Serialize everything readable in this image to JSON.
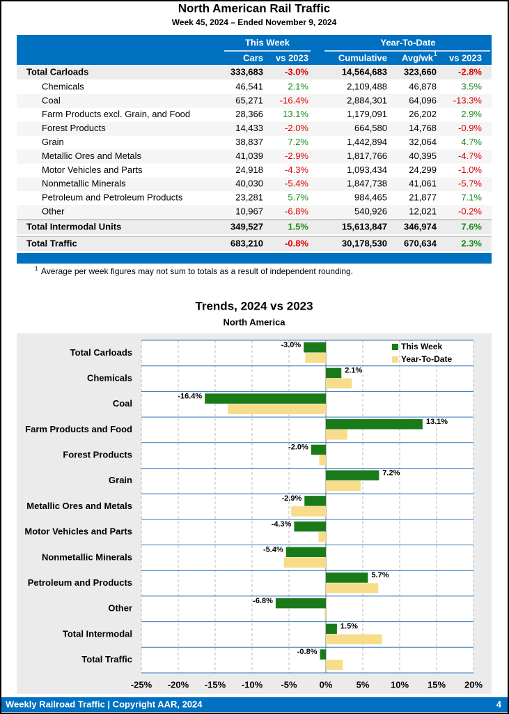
{
  "header": {
    "title": "North American Rail Traffic",
    "subtitle": "Week 45, 2024 – Ended November 9, 2024"
  },
  "table": {
    "group_headers": [
      "This Week",
      "Year-To-Date"
    ],
    "columns": [
      "Cars",
      "vs 2023",
      "Cumulative",
      "Avg/wk",
      "vs 2023"
    ],
    "footnote_ref": "1",
    "rows": [
      [
        "Total Carloads",
        "333,683",
        "-3.0%",
        "14,564,683",
        "323,660",
        "-2.8%"
      ],
      [
        "Chemicals",
        "46,541",
        "2.1%",
        "2,109,488",
        "46,878",
        "3.5%"
      ],
      [
        "Coal",
        "65,271",
        "-16.4%",
        "2,884,301",
        "64,096",
        "-13.3%"
      ],
      [
        "Farm Products excl. Grain, and Food",
        "28,366",
        "13.1%",
        "1,179,091",
        "26,202",
        "2.9%"
      ],
      [
        "Forest Products",
        "14,433",
        "-2.0%",
        "664,580",
        "14,768",
        "-0.9%"
      ],
      [
        "Grain",
        "38,837",
        "7.2%",
        "1,442,894",
        "32,064",
        "4.7%"
      ],
      [
        "Metallic Ores and Metals",
        "41,039",
        "-2.9%",
        "1,817,766",
        "40,395",
        "-4.7%"
      ],
      [
        "Motor Vehicles and Parts",
        "24,918",
        "-4.3%",
        "1,093,434",
        "24,299",
        "-1.0%"
      ],
      [
        "Nonmetallic Minerals",
        "40,030",
        "-5.4%",
        "1,847,738",
        "41,061",
        "-5.7%"
      ],
      [
        "Petroleum and Petroleum Products",
        "23,281",
        "5.7%",
        "984,465",
        "21,877",
        "7.1%"
      ],
      [
        "Other",
        "10,967",
        "-6.8%",
        "540,926",
        "12,021",
        "-0.2%"
      ],
      [
        "Total Intermodal Units",
        "349,527",
        "1.5%",
        "15,613,847",
        "346,974",
        "7.6%"
      ],
      [
        "Total Traffic",
        "683,210",
        "-0.8%",
        "30,178,530",
        "670,634",
        "2.3%"
      ]
    ]
  },
  "footnote": {
    "mark": "1",
    "text": "Average per week figures may not sum to totals as a result of independent rounding."
  },
  "chart_data": {
    "type": "bar",
    "orientation": "horizontal",
    "title": "Trends, 2024 vs 2023",
    "subtitle": "North America",
    "categories": [
      "Total Carloads",
      "Chemicals",
      "Coal",
      "Farm Products and Food",
      "Forest Products",
      "Grain",
      "Metallic Ores and Metals",
      "Motor Vehicles and Parts",
      "Nonmetallic Minerals",
      "Petroleum and Products",
      "Other",
      "Total Intermodal",
      "Total Traffic"
    ],
    "series": [
      {
        "name": "This Week",
        "color": "#1a7a1a",
        "values": [
          -3.0,
          2.1,
          -16.4,
          13.1,
          -2.0,
          7.2,
          -2.9,
          -4.3,
          -5.4,
          5.7,
          -6.8,
          1.5,
          -0.8
        ],
        "value_labels": [
          "-3.0%",
          "2.1%",
          "-16.4%",
          "13.1%",
          "-2.0%",
          "7.2%",
          "-2.9%",
          "-4.3%",
          "-5.4%",
          "5.7%",
          "-6.8%",
          "1.5%",
          "-0.8%"
        ]
      },
      {
        "name": "Year-To-Date",
        "color": "#f7dc8a",
        "values": [
          -2.8,
          3.5,
          -13.3,
          2.9,
          -0.9,
          4.7,
          -4.7,
          -1.0,
          -5.7,
          7.1,
          -0.2,
          7.6,
          2.3
        ]
      }
    ],
    "xlim": [
      -25,
      20
    ],
    "xticks": [
      {
        "value": -25,
        "label": "-25%"
      },
      {
        "value": -20,
        "label": "-20%"
      },
      {
        "value": -15,
        "label": "-15%"
      },
      {
        "value": -10,
        "label": "-10%"
      },
      {
        "value": -5,
        "label": "-5%"
      },
      {
        "value": 0,
        "label": "0%"
      },
      {
        "value": 5,
        "label": "5%"
      },
      {
        "value": 10,
        "label": "10%"
      },
      {
        "value": 15,
        "label": "15%"
      },
      {
        "value": 20,
        "label": "20%"
      }
    ],
    "grid": true,
    "legend": "upper right"
  },
  "footer": {
    "left": "Weekly Railroad Traffic | Copyright AAR, 2024",
    "page": "4"
  }
}
